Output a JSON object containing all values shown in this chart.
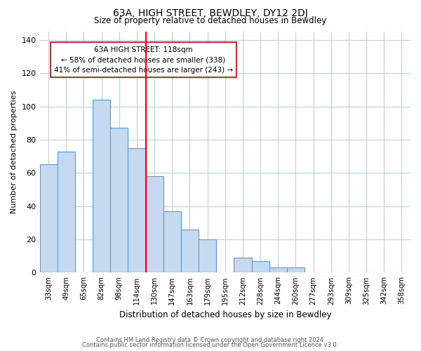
{
  "title": "63A, HIGH STREET, BEWDLEY, DY12 2DJ",
  "subtitle": "Size of property relative to detached houses in Bewdley",
  "xlabel": "Distribution of detached houses by size in Bewdley",
  "ylabel": "Number of detached properties",
  "bar_labels": [
    "33sqm",
    "49sqm",
    "65sqm",
    "82sqm",
    "98sqm",
    "114sqm",
    "130sqm",
    "147sqm",
    "163sqm",
    "179sqm",
    "195sqm",
    "212sqm",
    "228sqm",
    "244sqm",
    "260sqm",
    "277sqm",
    "293sqm",
    "309sqm",
    "325sqm",
    "342sqm",
    "358sqm"
  ],
  "bar_values": [
    65,
    73,
    0,
    104,
    87,
    75,
    58,
    37,
    26,
    20,
    0,
    9,
    7,
    3,
    3,
    0,
    0,
    0,
    0,
    0,
    0
  ],
  "bar_color": "#c5d9f1",
  "bar_edge_color": "#5b9bd5",
  "vline_x": 5.5,
  "vline_color": "#ff0000",
  "annotation_title": "63A HIGH STREET: 118sqm",
  "annotation_line1": "← 58% of detached houses are smaller (338)",
  "annotation_line2": "41% of semi-detached houses are larger (243) →",
  "annotation_box_edge": "#cc0000",
  "ylim": [
    0,
    145
  ],
  "yticks": [
    0,
    20,
    40,
    60,
    80,
    100,
    120,
    140
  ],
  "footer1": "Contains HM Land Registry data © Crown copyright and database right 2024.",
  "footer2": "Contains public sector information licensed under the Open Government Licence v3.0.",
  "background_color": "#ffffff",
  "grid_color": "#c0d0e0"
}
